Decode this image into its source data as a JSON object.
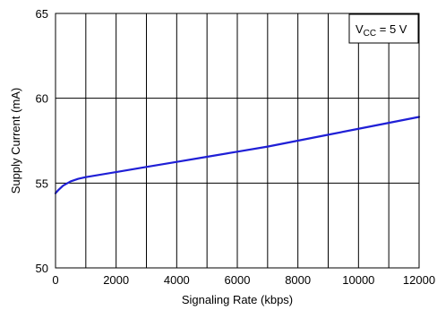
{
  "chart_data": {
    "type": "line",
    "title": "",
    "xlabel": "Signaling Rate (kbps)",
    "ylabel": "Supply Current (mA)",
    "xlim": [
      0,
      12000
    ],
    "ylim": [
      50,
      65
    ],
    "x_ticks": [
      0,
      2000,
      4000,
      6000,
      8000,
      10000,
      12000
    ],
    "x_tick_labels": [
      "0",
      "2000",
      "4000",
      "6000",
      "8000",
      "10000",
      "12000"
    ],
    "y_ticks": [
      50,
      55,
      60,
      65
    ],
    "y_tick_labels": [
      "50",
      "55",
      "60",
      "65"
    ],
    "x_grid_step": 1000,
    "grid": true,
    "annotation": {
      "main": "V",
      "subscript": "CC",
      "rest": " = 5 V",
      "position": "top-right"
    },
    "series": [
      {
        "color": "#1f1fd6",
        "x": [
          0,
          100,
          250,
          500,
          750,
          1000,
          2000,
          3000,
          4000,
          5000,
          6000,
          7000,
          8000,
          9000,
          10000,
          11000,
          12000
        ],
        "y": [
          54.4,
          54.6,
          54.85,
          55.1,
          55.25,
          55.35,
          55.65,
          55.95,
          56.25,
          56.55,
          56.85,
          57.15,
          57.5,
          57.85,
          58.2,
          58.55,
          58.9
        ]
      }
    ]
  }
}
